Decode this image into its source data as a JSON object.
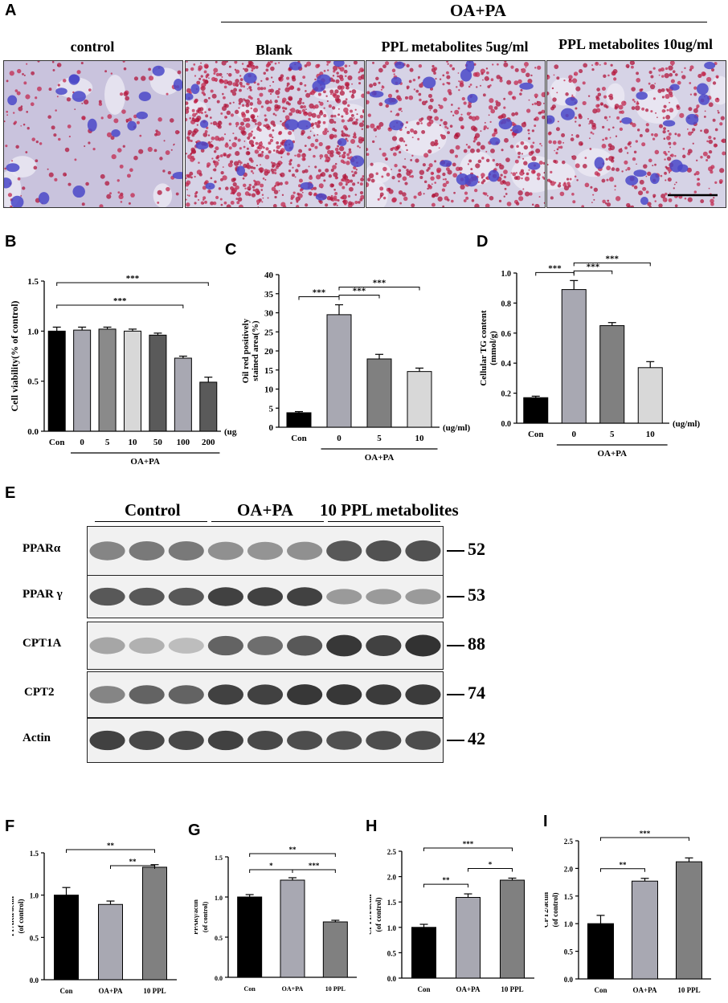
{
  "panelA": {
    "label": "A",
    "group_label": "OA+PA",
    "images": [
      {
        "title": "control",
        "stain": "light"
      },
      {
        "title": "Blank",
        "stain": "heavy"
      },
      {
        "title": "PPL metabolites 5ug/ml",
        "stain": "medium"
      },
      {
        "title": "PPL metabolites 10ug/ml",
        "stain": "medium-light"
      }
    ]
  },
  "panelE": {
    "label": "E",
    "groups": [
      "Control",
      "OA+PA",
      "10 PPL metabolites"
    ],
    "blots": [
      {
        "name": "PPARα",
        "kda": "52",
        "intensity": [
          0.55,
          0.6,
          0.6,
          0.5,
          0.48,
          0.5,
          0.75,
          0.78,
          0.78
        ]
      },
      {
        "name": "PPAR γ",
        "kda": "53",
        "intensity": [
          0.75,
          0.75,
          0.75,
          0.85,
          0.85,
          0.85,
          0.45,
          0.45,
          0.45
        ]
      },
      {
        "name": "CPT1A",
        "kda": "88",
        "intensity": [
          0.4,
          0.35,
          0.3,
          0.7,
          0.65,
          0.75,
          0.9,
          0.85,
          0.92
        ]
      },
      {
        "name": "CPT2",
        "kda": "74",
        "intensity": [
          0.55,
          0.7,
          0.7,
          0.85,
          0.85,
          0.9,
          0.9,
          0.88,
          0.88
        ]
      },
      {
        "name": "Actin",
        "kda": "42",
        "intensity": [
          0.85,
          0.82,
          0.82,
          0.85,
          0.82,
          0.8,
          0.78,
          0.8,
          0.8
        ]
      }
    ]
  },
  "chart_data": [
    {
      "panel": "B",
      "type": "bar",
      "ylabel": "Cell viability(% of control)",
      "categories": [
        "Con",
        "0",
        "5",
        "10",
        "50",
        "100",
        "200"
      ],
      "values": [
        1.0,
        1.01,
        1.02,
        1.0,
        0.96,
        0.73,
        0.49
      ],
      "errors": [
        0.04,
        0.03,
        0.02,
        0.02,
        0.02,
        0.02,
        0.05
      ],
      "colors": [
        "#000000",
        "#a8a8b2",
        "#8a8a8a",
        "#d8d8d8",
        "#5a5a5a",
        "#a8a8b2",
        "#5a5a5a"
      ],
      "ylim": [
        0,
        1.5
      ],
      "yticks": [
        "0.0",
        "0.5",
        "1.0",
        "1.5"
      ],
      "unit": "(ug/ml)",
      "group_label": "OA+PA",
      "significance": [
        {
          "from": 0,
          "to": 6,
          "label": "***"
        },
        {
          "from": 0,
          "to": 5,
          "label": "***"
        }
      ]
    },
    {
      "panel": "C",
      "type": "bar",
      "ylabel": "Oil red positively stained area(%)",
      "categories": [
        "Con",
        "0",
        "5",
        "10"
      ],
      "values": [
        3.8,
        29.5,
        17.9,
        14.6
      ],
      "errors": [
        0.3,
        2.6,
        1.2,
        0.9
      ],
      "colors": [
        "#000000",
        "#a8a8b2",
        "#808080",
        "#d8d8d8"
      ],
      "ylim": [
        0,
        40
      ],
      "yticks": [
        "0",
        "5",
        "10",
        "15",
        "20",
        "25",
        "30",
        "35",
        "40"
      ],
      "unit": "(ug/ml)",
      "group_label": "OA+PA",
      "significance": [
        {
          "from": 0,
          "to": 1,
          "label": "***"
        },
        {
          "from": 1,
          "to": 2,
          "label": "***"
        },
        {
          "from": 1,
          "to": 3,
          "label": "***"
        }
      ]
    },
    {
      "panel": "D",
      "type": "bar",
      "ylabel": "Cellular TG content (mmol/g)",
      "categories": [
        "Con",
        "0",
        "5",
        "10"
      ],
      "values": [
        0.17,
        0.89,
        0.65,
        0.37
      ],
      "errors": [
        0.01,
        0.06,
        0.02,
        0.04
      ],
      "colors": [
        "#000000",
        "#a8a8b2",
        "#808080",
        "#d8d8d8"
      ],
      "ylim": [
        0,
        1.0
      ],
      "yticks": [
        "0.0",
        "0.2",
        "0.4",
        "0.6",
        "0.8",
        "1.0"
      ],
      "unit": "(ug/ml)",
      "group_label": "OA+PA",
      "significance": [
        {
          "from": 0,
          "to": 1,
          "label": "***"
        },
        {
          "from": 1,
          "to": 2,
          "label": "***"
        },
        {
          "from": 1,
          "to": 3,
          "label": "***"
        }
      ]
    },
    {
      "panel": "F",
      "type": "bar",
      "ylabel": "PPARα/actin (of control)",
      "categories": [
        "Con",
        "OA+PA",
        "10 PPL"
      ],
      "values": [
        1.0,
        0.89,
        1.33
      ],
      "errors": [
        0.09,
        0.04,
        0.03
      ],
      "colors": [
        "#000000",
        "#a8a8b2",
        "#808080"
      ],
      "ylim": [
        0,
        1.5
      ],
      "yticks": [
        "0.0",
        "0.5",
        "1.0",
        "1.5"
      ],
      "significance": [
        {
          "from": 0,
          "to": 2,
          "label": "**"
        },
        {
          "from": 1,
          "to": 2,
          "label": "**"
        }
      ]
    },
    {
      "panel": "G",
      "type": "bar",
      "ylabel": "PPARγ/actin (of control)",
      "categories": [
        "Con",
        "OA+PA",
        "10 PPL"
      ],
      "values": [
        1.0,
        1.21,
        0.69
      ],
      "errors": [
        0.03,
        0.03,
        0.02
      ],
      "colors": [
        "#000000",
        "#a8a8b2",
        "#808080"
      ],
      "ylim": [
        0,
        1.5
      ],
      "yticks": [
        "0.0",
        "0.5",
        "1.0",
        "1.5"
      ],
      "significance": [
        {
          "from": 0,
          "to": 2,
          "label": "**"
        },
        {
          "from": 0,
          "to": 1,
          "label": "*"
        },
        {
          "from": 1,
          "to": 2,
          "label": "***"
        }
      ]
    },
    {
      "panel": "H",
      "type": "bar",
      "ylabel": "CPT1A/actin (of control)",
      "categories": [
        "Con",
        "OA+PA",
        "10 PPL"
      ],
      "values": [
        1.0,
        1.59,
        1.93
      ],
      "errors": [
        0.06,
        0.07,
        0.04
      ],
      "colors": [
        "#000000",
        "#a8a8b2",
        "#808080"
      ],
      "ylim": [
        0,
        2.5
      ],
      "yticks": [
        "0.0",
        "0.5",
        "1.0",
        "1.5",
        "2.0",
        "2.5"
      ],
      "significance": [
        {
          "from": 0,
          "to": 2,
          "label": "***"
        },
        {
          "from": 0,
          "to": 1,
          "label": "**"
        },
        {
          "from": 1,
          "to": 2,
          "label": "*"
        }
      ]
    },
    {
      "panel": "I",
      "type": "bar",
      "ylabel": "CPT2/actin (of control)",
      "categories": [
        "Con",
        "OA+PA",
        "10 PPL"
      ],
      "values": [
        1.0,
        1.77,
        2.12
      ],
      "errors": [
        0.15,
        0.05,
        0.07
      ],
      "colors": [
        "#000000",
        "#a8a8b2",
        "#808080"
      ],
      "ylim": [
        0,
        2.5
      ],
      "yticks": [
        "0.0",
        "0.5",
        "1.0",
        "1.5",
        "2.0",
        "2.5"
      ],
      "significance": [
        {
          "from": 0,
          "to": 2,
          "label": "***"
        },
        {
          "from": 0,
          "to": 1,
          "label": "**"
        }
      ]
    }
  ]
}
